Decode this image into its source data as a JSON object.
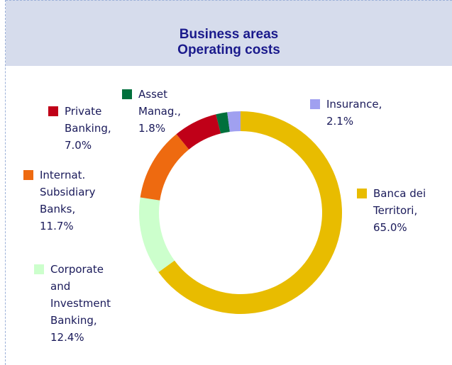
{
  "chart_data": {
    "type": "donut",
    "title": "Business areas\nOperating costs",
    "categories": [
      "Banca dei Territori,",
      "Corporate and Investment Banking,",
      "Internat. Subsidiary Banks,",
      "Private Banking,",
      "Asset Manag.,",
      "Insurance,"
    ],
    "values": [
      65.0,
      12.4,
      11.7,
      7.0,
      1.8,
      2.1
    ],
    "value_labels": [
      "65.0%",
      "12.4%",
      "11.7%",
      "7.0%",
      "1.8%",
      "2.1%"
    ],
    "colors": [
      "#e8bc00",
      "#ccffcc",
      "#ee6a10",
      "#c00018",
      "#00703c",
      "#a0a0f0"
    ]
  }
}
